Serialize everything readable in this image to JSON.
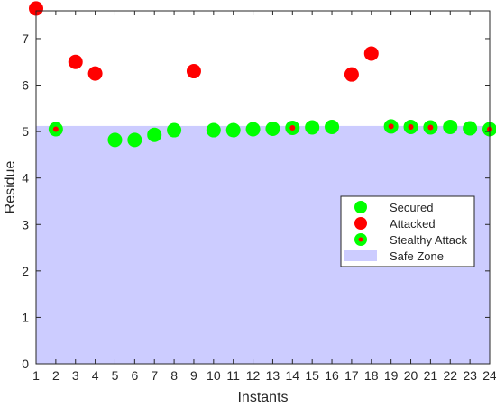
{
  "chart_data": {
    "type": "scatter",
    "xlabel": "Instants",
    "ylabel": "Residue",
    "xlim": [
      1,
      24
    ],
    "ylim": [
      0,
      7.6
    ],
    "x_ticks": [
      1,
      2,
      3,
      4,
      5,
      6,
      7,
      8,
      9,
      10,
      11,
      12,
      13,
      14,
      15,
      16,
      17,
      18,
      19,
      20,
      21,
      22,
      23,
      24
    ],
    "y_ticks": [
      0,
      1,
      2,
      3,
      4,
      5,
      6,
      7
    ],
    "safe_zone_threshold": 5.12,
    "legend_position": "middle-right",
    "colors": {
      "secured": "#00ff00",
      "attacked": "#ff0000",
      "safe_zone": "#ccccff",
      "stealthy_edge": "#00ff00",
      "stealthy_center": "#ff0000"
    },
    "series": [
      {
        "name": "Secured",
        "points": [
          {
            "x": 5,
            "y": 4.82
          },
          {
            "x": 6,
            "y": 4.82
          },
          {
            "x": 7,
            "y": 4.93
          },
          {
            "x": 8,
            "y": 5.03
          },
          {
            "x": 10,
            "y": 5.03
          },
          {
            "x": 11,
            "y": 5.03
          },
          {
            "x": 12,
            "y": 5.05
          },
          {
            "x": 13,
            "y": 5.06
          },
          {
            "x": 15,
            "y": 5.09
          },
          {
            "x": 16,
            "y": 5.1
          },
          {
            "x": 22,
            "y": 5.1
          },
          {
            "x": 23,
            "y": 5.07
          }
        ]
      },
      {
        "name": "Attacked",
        "points": [
          {
            "x": 1,
            "y": 7.65
          },
          {
            "x": 3,
            "y": 6.5
          },
          {
            "x": 4,
            "y": 6.25
          },
          {
            "x": 9,
            "y": 6.3
          },
          {
            "x": 17,
            "y": 6.23
          },
          {
            "x": 18,
            "y": 6.68
          }
        ]
      },
      {
        "name": "Stealthy Attack",
        "points": [
          {
            "x": 2,
            "y": 5.05
          },
          {
            "x": 14,
            "y": 5.08
          },
          {
            "x": 19,
            "y": 5.11
          },
          {
            "x": 20,
            "y": 5.1
          },
          {
            "x": 21,
            "y": 5.09
          },
          {
            "x": 24,
            "y": 5.05
          }
        ]
      }
    ],
    "legend": [
      {
        "label": "Secured",
        "icon": "green-dot"
      },
      {
        "label": "Attacked",
        "icon": "red-dot"
      },
      {
        "label": "Stealthy Attack",
        "icon": "green-dot-red-center"
      },
      {
        "label": "Safe Zone",
        "icon": "blue-patch"
      }
    ]
  }
}
